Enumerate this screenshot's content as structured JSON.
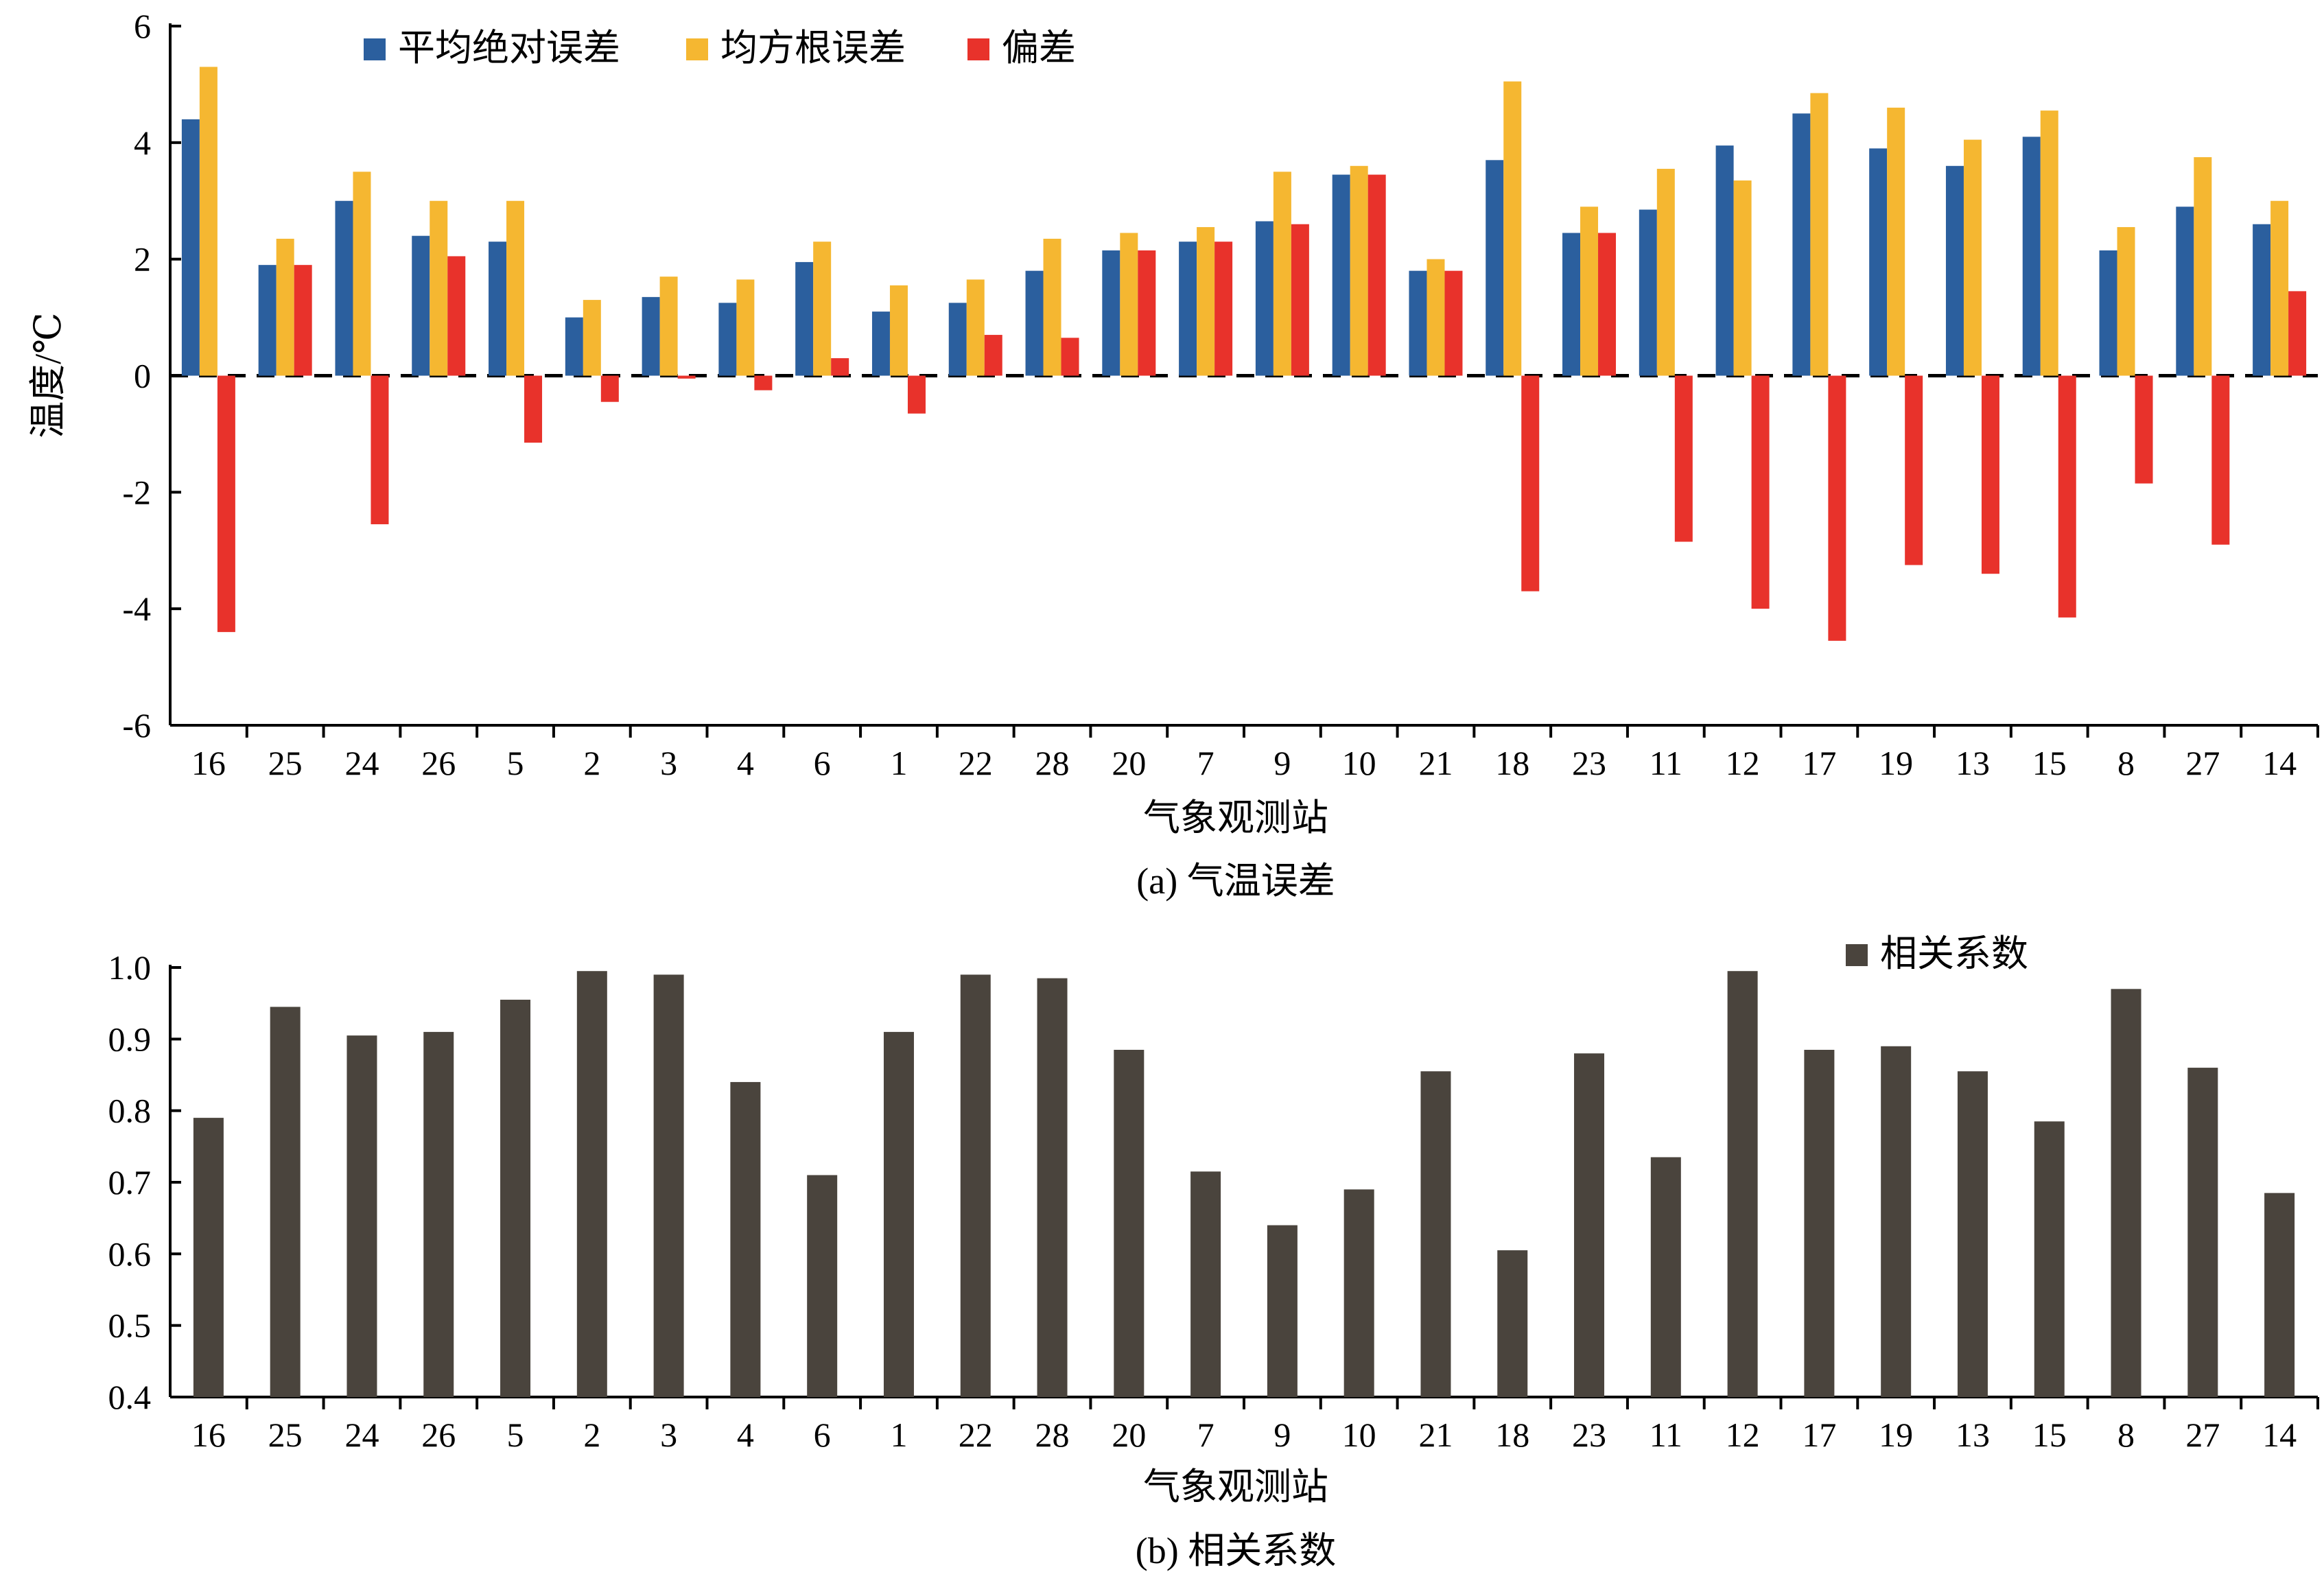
{
  "chart_data": [
    {
      "type": "bar",
      "caption": "(a) 气温误差",
      "xlabel": "气象观测站",
      "ylabel": "温度/℃",
      "ylim": [
        -6,
        6
      ],
      "yticks": [
        -6,
        -4,
        -2,
        0,
        2,
        4,
        6
      ],
      "reference_line": 0,
      "legend_position": "top-left",
      "categories": [
        "16",
        "25",
        "24",
        "26",
        "5",
        "2",
        "3",
        "4",
        "6",
        "1",
        "22",
        "28",
        "20",
        "7",
        "9",
        "10",
        "21",
        "18",
        "23",
        "11",
        "12",
        "17",
        "19",
        "13",
        "15",
        "8",
        "27",
        "14"
      ],
      "series": [
        {
          "name": "平均绝对误差",
          "color": "#2b5f9e",
          "values": [
            4.4,
            1.9,
            3.0,
            2.4,
            2.3,
            1.0,
            1.35,
            1.25,
            1.95,
            1.1,
            1.25,
            1.8,
            2.15,
            2.3,
            2.65,
            3.45,
            1.8,
            3.7,
            2.45,
            2.85,
            3.95,
            4.5,
            3.9,
            3.6,
            4.1,
            2.15,
            2.9,
            2.6
          ]
        },
        {
          "name": "均方根误差",
          "color": "#f5b731",
          "values": [
            5.3,
            2.35,
            3.5,
            3.0,
            3.0,
            1.3,
            1.7,
            1.65,
            2.3,
            1.55,
            1.65,
            2.35,
            2.45,
            2.55,
            3.5,
            3.6,
            2.0,
            5.05,
            2.9,
            3.55,
            3.35,
            4.85,
            4.6,
            4.05,
            4.55,
            2.55,
            3.75,
            3.0
          ]
        },
        {
          "name": "偏差",
          "color": "#e8322b",
          "values": [
            -4.4,
            1.9,
            -2.55,
            2.05,
            -1.15,
            -0.45,
            -0.05,
            -0.25,
            0.3,
            -0.65,
            0.7,
            0.65,
            2.15,
            2.3,
            2.6,
            3.45,
            1.8,
            -3.7,
            2.45,
            -2.85,
            -4.0,
            -4.55,
            -3.25,
            -3.4,
            -4.15,
            -1.85,
            -2.9,
            1.45
          ]
        }
      ]
    },
    {
      "type": "bar",
      "caption": "(b) 相关系数",
      "xlabel": "气象观测站",
      "ylabel": "",
      "ylim": [
        0.4,
        1.0
      ],
      "yticks": [
        "0.4",
        "0.5",
        "0.6",
        "0.7",
        "0.8",
        "0.9",
        "1.0"
      ],
      "legend_position": "top-right",
      "categories": [
        "16",
        "25",
        "24",
        "26",
        "5",
        "2",
        "3",
        "4",
        "6",
        "1",
        "22",
        "28",
        "20",
        "7",
        "9",
        "10",
        "21",
        "18",
        "23",
        "11",
        "12",
        "17",
        "19",
        "13",
        "15",
        "8",
        "27",
        "14"
      ],
      "series": [
        {
          "name": "相关系数",
          "color": "#4a443d",
          "values": [
            0.79,
            0.945,
            0.905,
            0.91,
            0.955,
            0.995,
            0.99,
            0.84,
            0.71,
            0.91,
            0.99,
            0.985,
            0.885,
            0.715,
            0.64,
            0.69,
            0.855,
            0.605,
            0.88,
            0.735,
            0.995,
            0.885,
            0.89,
            0.855,
            0.785,
            0.97,
            0.86,
            0.685
          ]
        }
      ]
    }
  ]
}
